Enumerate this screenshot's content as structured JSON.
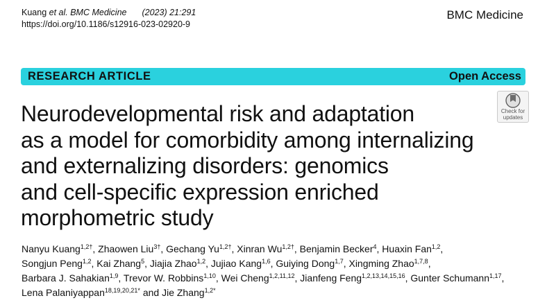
{
  "header": {
    "authors_short": "Kuang ",
    "et_al": "et al.",
    "journal": "BMC Medicine",
    "year_volume": "(2023) 21:291",
    "doi": "https://doi.org/10.1186/s12916-023-02920-9",
    "journal_brand": "BMC Medicine"
  },
  "banner": {
    "article_type": "RESEARCH ARTICLE",
    "access": "Open Access",
    "color": "#2ad1de"
  },
  "check_updates": {
    "icon": "check-for-updates-icon",
    "line1": "Check for",
    "line2": "updates"
  },
  "title_lines": [
    "Neurodevelopmental risk and adaptation",
    "as a model for comorbidity among internalizing",
    "and externalizing disorders: genomics",
    "and cell-specific expression enriched",
    "morphometric study"
  ],
  "authors": [
    [
      {
        "name": "Nanyu Kuang",
        "sup": "1,2†",
        "sep": ", "
      },
      {
        "name": "Zhaowen Liu",
        "sup": "3†",
        "sep": ", "
      },
      {
        "name": "Gechang Yu",
        "sup": "1,2†",
        "sep": ", "
      },
      {
        "name": "Xinran Wu",
        "sup": "1,2†",
        "sep": ", "
      },
      {
        "name": "Benjamin Becker",
        "sup": "4",
        "sep": ", "
      },
      {
        "name": "Huaxin Fan",
        "sup": "1,2",
        "sep": ","
      }
    ],
    [
      {
        "name": "Songjun Peng",
        "sup": "1,2",
        "sep": ", "
      },
      {
        "name": "Kai Zhang",
        "sup": "5",
        "sep": ", "
      },
      {
        "name": "Jiajia Zhao",
        "sup": "1,2",
        "sep": ", "
      },
      {
        "name": "Jujiao Kang",
        "sup": "1,6",
        "sep": ", "
      },
      {
        "name": "Guiying Dong",
        "sup": "1,7",
        "sep": ", "
      },
      {
        "name": "Xingming Zhao",
        "sup": "1,7,8",
        "sep": ","
      }
    ],
    [
      {
        "name": "Barbara J. Sahakian",
        "sup": "1,9",
        "sep": ", "
      },
      {
        "name": "Trevor W. Robbins",
        "sup": "1,10",
        "sep": ", "
      },
      {
        "name": "Wei Cheng",
        "sup": "1,2,11,12",
        "sep": ", "
      },
      {
        "name": "Jianfeng Feng",
        "sup": "1,2,13,14,15,16",
        "sep": ", "
      },
      {
        "name": "Gunter Schumann",
        "sup": "1,17",
        "sep": ","
      }
    ],
    [
      {
        "name": "Lena Palaniyappan",
        "sup": "18,19,20,21*",
        "sep": " and "
      },
      {
        "name": "Jie Zhang",
        "sup": "1,2*",
        "sep": ""
      }
    ]
  ]
}
